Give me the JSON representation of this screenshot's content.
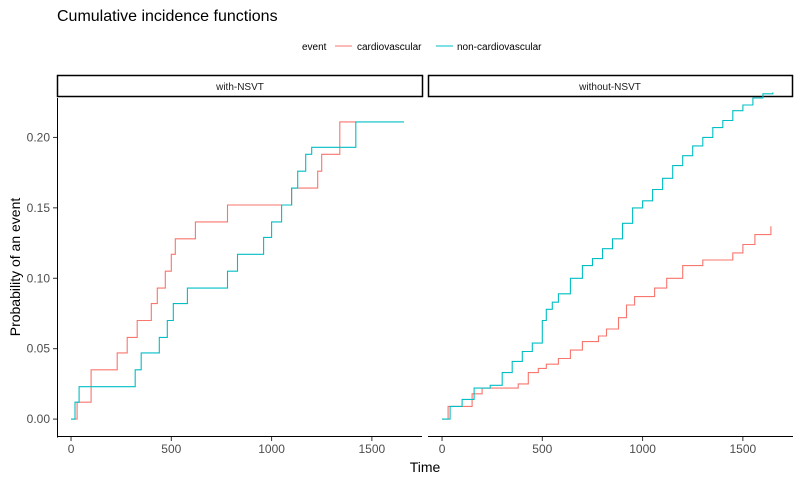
{
  "chart_data": {
    "type": "line",
    "step": true,
    "title": "Cumulative incidence functions",
    "xlabel": "Time",
    "ylabel": "Probability of an event",
    "legend": {
      "title": "event",
      "position": "top",
      "entries": [
        "cardiovascular",
        "non-cardiovascular"
      ]
    },
    "colors": {
      "cardiovascular": "#F8766D",
      "non-cardiovascular": "#00BFC4"
    },
    "grid": false,
    "xlim": [
      -70,
      1750
    ],
    "ylim": [
      -0.012,
      0.228
    ],
    "x_ticks": [
      0,
      500,
      1000,
      1500
    ],
    "x_tick_labels": [
      "0",
      "500",
      "1000",
      "1500"
    ],
    "y_ticks": [
      0.0,
      0.05,
      0.1,
      0.15,
      0.2
    ],
    "y_tick_labels": [
      "0.00",
      "0.05",
      "0.10",
      "0.15",
      "0.20"
    ],
    "panels": [
      {
        "label": "with-NSVT",
        "series": [
          {
            "name": "cardiovascular",
            "x": [
              0,
              30,
              50,
              100,
              180,
              230,
              280,
              330,
              400,
              430,
              470,
              500,
              520,
              620,
              780,
              1000,
              1100,
              1230,
              1250,
              1340,
              1420
            ],
            "y": [
              0,
              0.012,
              0.012,
              0.035,
              0.035,
              0.047,
              0.058,
              0.07,
              0.082,
              0.093,
              0.105,
              0.117,
              0.128,
              0.14,
              0.152,
              0.152,
              0.164,
              0.176,
              0.188,
              0.211,
              0.211
            ]
          },
          {
            "name": "non-cardiovascular",
            "x": [
              0,
              20,
              40,
              320,
              350,
              440,
              480,
              510,
              580,
              780,
              830,
              960,
              1000,
              1050,
              1100,
              1130,
              1170,
              1200,
              1250,
              1420,
              1660
            ],
            "y": [
              0,
              0.012,
              0.023,
              0.035,
              0.047,
              0.058,
              0.07,
              0.082,
              0.093,
              0.105,
              0.117,
              0.129,
              0.14,
              0.152,
              0.164,
              0.176,
              0.188,
              0.193,
              0.193,
              0.211,
              0.211
            ]
          }
        ]
      },
      {
        "label": "without-NSVT",
        "series": [
          {
            "name": "cardiovascular",
            "x": [
              0,
              30,
              80,
              150,
              200,
              300,
              380,
              430,
              480,
              520,
              580,
              640,
              700,
              780,
              820,
              880,
              920,
              960,
              1060,
              1120,
              1200,
              1300,
              1450,
              1500,
              1560,
              1640
            ],
            "y": [
              0,
              0.009,
              0.009,
              0.018,
              0.022,
              0.022,
              0.025,
              0.033,
              0.036,
              0.039,
              0.043,
              0.049,
              0.055,
              0.059,
              0.064,
              0.072,
              0.081,
              0.087,
              0.093,
              0.1,
              0.109,
              0.113,
              0.118,
              0.124,
              0.131,
              0.137
            ]
          },
          {
            "name": "non-cardiovascular",
            "x": [
              0,
              40,
              100,
              160,
              240,
              300,
              350,
              400,
              450,
              500,
              520,
              550,
              580,
              640,
              700,
              750,
              800,
              850,
              900,
              950,
              1000,
              1050,
              1100,
              1150,
              1200,
              1250,
              1300,
              1350,
              1400,
              1450,
              1500,
              1550,
              1600,
              1650
            ],
            "y": [
              0,
              0.009,
              0.014,
              0.022,
              0.024,
              0.033,
              0.041,
              0.048,
              0.054,
              0.07,
              0.078,
              0.083,
              0.089,
              0.1,
              0.109,
              0.114,
              0.121,
              0.128,
              0.139,
              0.15,
              0.155,
              0.163,
              0.171,
              0.18,
              0.187,
              0.194,
              0.2,
              0.207,
              0.212,
              0.219,
              0.223,
              0.228,
              0.231,
              0.232
            ]
          }
        ]
      }
    ]
  }
}
